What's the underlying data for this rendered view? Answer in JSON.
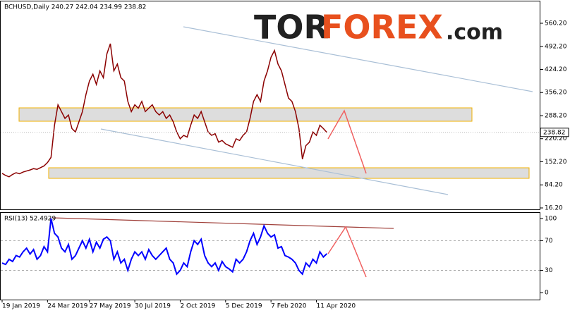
{
  "watermark": {
    "brand": "TOR",
    "highlight": "FOREX",
    "domain": ".com"
  },
  "chart_data": [
    {
      "type": "line",
      "title": "BCHUSD,Daily  240.27 242.04 234.99 238.82",
      "color": "#8b0000",
      "categories": [
        "19 Jan 2019",
        null,
        null,
        null,
        null,
        null,
        null,
        null,
        null,
        null,
        null,
        null,
        null,
        "24 Mar 2019",
        null,
        null,
        null,
        null,
        null,
        null,
        null,
        null,
        null,
        null,
        null,
        "27 May 2019",
        null,
        null,
        null,
        null,
        null,
        null,
        null,
        null,
        null,
        null,
        null,
        null,
        "30 Jul 2019",
        null,
        null,
        null,
        null,
        null,
        null,
        null,
        null,
        null,
        null,
        null,
        null,
        "2 Oct 2019",
        null,
        null,
        null,
        null,
        null,
        null,
        null,
        null,
        null,
        null,
        null,
        null,
        "5 Dec 2019",
        null,
        null,
        null,
        null,
        null,
        null,
        null,
        null,
        null,
        null,
        null,
        null,
        "7 Feb 2020",
        null,
        null,
        null,
        null,
        null,
        null,
        null,
        null,
        null,
        null,
        null,
        null,
        "11 Apr 2020",
        null,
        null,
        null
      ],
      "values": [
        118,
        112,
        108,
        115,
        120,
        117,
        122,
        125,
        128,
        132,
        130,
        135,
        140,
        150,
        165,
        260,
        320,
        300,
        280,
        290,
        250,
        240,
        270,
        300,
        350,
        390,
        410,
        380,
        420,
        400,
        470,
        500,
        420,
        440,
        400,
        390,
        330,
        300,
        320,
        310,
        330,
        300,
        310,
        320,
        300,
        290,
        300,
        280,
        290,
        270,
        240,
        220,
        230,
        225,
        260,
        290,
        280,
        300,
        270,
        240,
        230,
        235,
        210,
        215,
        205,
        200,
        195,
        220,
        215,
        230,
        240,
        280,
        330,
        350,
        330,
        390,
        420,
        460,
        480,
        440,
        420,
        380,
        340,
        330,
        300,
        250,
        160,
        200,
        210,
        240,
        230,
        260,
        250,
        238.82
      ],
      "last_price": 238.82,
      "ylim": [
        12.0,
        624.6
      ],
      "yticks": [
        {
          "value": 560.2,
          "label": "560.20"
        },
        {
          "value": 492.2,
          "label": "492.20"
        },
        {
          "value": 424.2,
          "label": "424.20"
        },
        {
          "value": 356.2,
          "label": "356.20"
        },
        {
          "value": 288.2,
          "label": "288.20"
        },
        {
          "value": 220.2,
          "label": "220.20"
        },
        {
          "value": 152.2,
          "label": "152.20"
        },
        {
          "value": 84.2,
          "label": "84.20"
        },
        {
          "value": 16.2,
          "label": "16.20"
        }
      ]
    },
    {
      "type": "line",
      "title": "RSI(13) 52.4929",
      "color": "#0000ff",
      "values": [
        40,
        38,
        45,
        42,
        50,
        48,
        55,
        60,
        52,
        58,
        45,
        50,
        62,
        55,
        100,
        80,
        75,
        60,
        55,
        65,
        45,
        50,
        60,
        70,
        60,
        72,
        55,
        68,
        60,
        72,
        75,
        70,
        45,
        55,
        40,
        45,
        30,
        45,
        55,
        50,
        55,
        45,
        58,
        50,
        45,
        50,
        55,
        60,
        45,
        40,
        25,
        30,
        40,
        35,
        55,
        70,
        65,
        72,
        50,
        40,
        35,
        40,
        30,
        42,
        35,
        32,
        28,
        45,
        40,
        45,
        55,
        70,
        80,
        65,
        75,
        90,
        80,
        75,
        78,
        60,
        62,
        50,
        48,
        45,
        40,
        30,
        25,
        40,
        35,
        45,
        40,
        55,
        48,
        52.4929
      ],
      "ylim": [
        -9.4,
        107.5
      ],
      "yticks": [
        100,
        70,
        30,
        0
      ],
      "dashed_levels": [
        70,
        30
      ]
    }
  ]
}
